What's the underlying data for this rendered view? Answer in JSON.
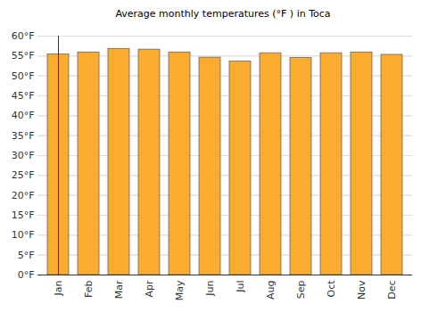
{
  "chart_data": {
    "type": "bar",
    "title": "Average monthly temperatures (°F ) in Toca",
    "categories": [
      "Jan",
      "Feb",
      "Mar",
      "Apr",
      "May",
      "Jun",
      "Jul",
      "Aug",
      "Sep",
      "Oct",
      "Nov",
      "Dec"
    ],
    "values": [
      55.4,
      55.9,
      56.8,
      56.6,
      55.9,
      54.6,
      53.6,
      55.7,
      54.5,
      55.7,
      55.9,
      55.3
    ],
    "color": "#fbac2e",
    "ylim": [
      0,
      60
    ],
    "yticks": [
      {
        "value": 0,
        "label": "0°F"
      },
      {
        "value": 5,
        "label": "5°F"
      },
      {
        "value": 10,
        "label": "10°F"
      },
      {
        "value": 15,
        "label": "15°F"
      },
      {
        "value": 20,
        "label": "20°F"
      },
      {
        "value": 25,
        "label": "25°F"
      },
      {
        "value": 30,
        "label": "30°F"
      },
      {
        "value": 35,
        "label": "35°F"
      },
      {
        "value": 40,
        "label": "40°F"
      },
      {
        "value": 45,
        "label": "45°F"
      },
      {
        "value": 50,
        "label": "50°F"
      },
      {
        "value": 55,
        "label": "55°F"
      },
      {
        "value": 60,
        "label": "60°F"
      }
    ],
    "grid": true
  }
}
